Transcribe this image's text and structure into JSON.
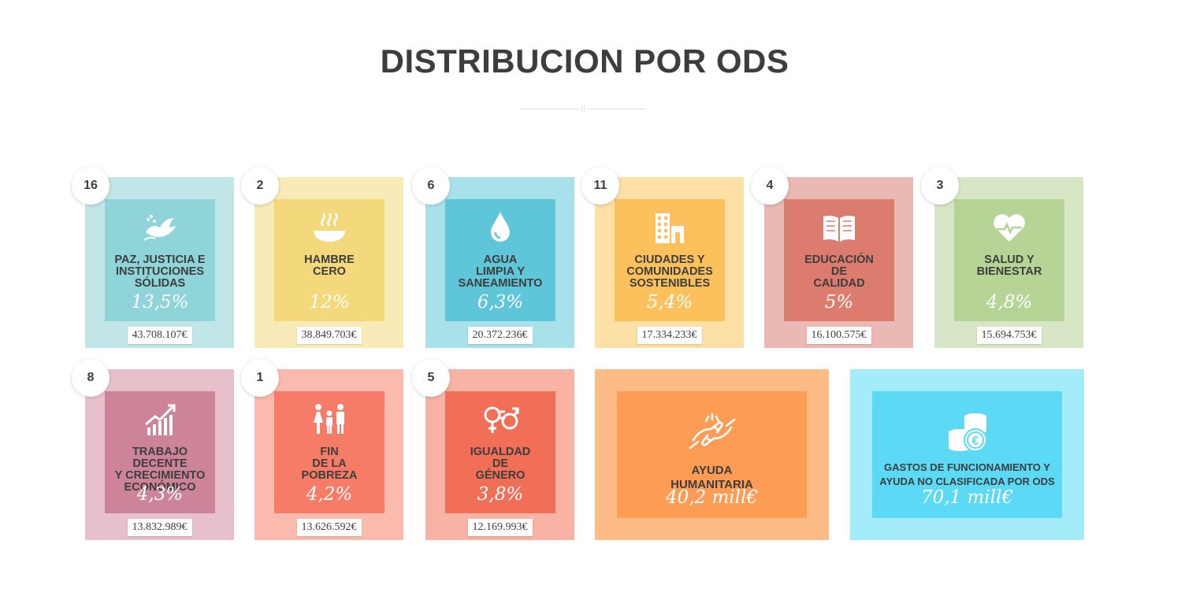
{
  "title": "DISTRIBUCION POR ODS",
  "cards": [
    {
      "number": "16",
      "label": [
        "PAZ, JUSTICIA E",
        "INSTITUCIONES",
        "SÓLIDAS"
      ],
      "percent": "13,5%",
      "amount": "43.708.107€",
      "icon": "dove-icon",
      "outer": "#c0e6e8",
      "inner": "#8fd4d9"
    },
    {
      "number": "2",
      "label": [
        "HAMBRE",
        "CERO"
      ],
      "percent": "12%",
      "amount": "38.849.703€",
      "icon": "bowl-icon",
      "outer": "#f8ebb8",
      "inner": "#f3d97b"
    },
    {
      "number": "6",
      "label": [
        "AGUA",
        "LIMPIA Y",
        "SANEAMIENTO"
      ],
      "percent": "6,3%",
      "amount": "20.372.236€",
      "icon": "water-drop-icon",
      "outer": "#a9e1ea",
      "inner": "#5fc6da"
    },
    {
      "number": "11",
      "label": [
        "CIUDADES Y",
        "COMUNIDADES",
        "SOSTENIBLES"
      ],
      "percent": "5,4%",
      "amount": "17.334.233€",
      "icon": "buildings-icon",
      "outer": "#fde0a6",
      "inner": "#fcc15c"
    },
    {
      "number": "4",
      "label": [
        "EDUCACIÓN",
        "DE",
        "CALIDAD"
      ],
      "percent": "5%",
      "amount": "16.100.575€",
      "icon": "book-icon",
      "outer": "#ebb9b3",
      "inner": "#db7c6e"
    },
    {
      "number": "3",
      "label": [
        "SALUD Y",
        "BIENESTAR"
      ],
      "percent": "4,8%",
      "amount": "15.694.753€",
      "icon": "heart-pulse-icon",
      "outer": "#d7e6c4",
      "inner": "#b6d495"
    },
    {
      "number": "8",
      "label": [
        "TRABAJO DECENTE",
        "Y CRECIMIENTO",
        "ECONÓMICO"
      ],
      "percent": "4,3%",
      "amount": "13.832.989€",
      "icon": "growth-chart-icon",
      "outer": "#e8c0cc",
      "inner": "#cd8498"
    },
    {
      "number": "1",
      "label": [
        "FIN",
        "DE LA",
        "POBREZA"
      ],
      "percent": "4,2%",
      "amount": "13.626.592€",
      "icon": "family-icon",
      "outer": "#fbbaae",
      "inner": "#f77c68"
    },
    {
      "number": "5",
      "label": [
        "IGUALDAD",
        "DE",
        "GÉNERO"
      ],
      "percent": "3,8%",
      "amount": "12.169.993€",
      "icon": "gender-equality-icon",
      "outer": "#f8b3a5",
      "inner": "#f16e57"
    }
  ],
  "wide_cards": [
    {
      "label": [
        "AYUDA",
        "HUMANITARIA"
      ],
      "value": "40,2 mill€",
      "icon": "helping-hands-icon",
      "outer": "#fdbb86",
      "inner": "#fd9c55"
    },
    {
      "label": [
        "GASTOS DE FUNCIONAMIENTO Y",
        "AYUDA NO CLASIFICADA POR ODS"
      ],
      "value": "70,1 mill€",
      "icon": "euro-coins-icon",
      "outer": "#a4ecfa",
      "inner": "#5bd9f5"
    }
  ]
}
